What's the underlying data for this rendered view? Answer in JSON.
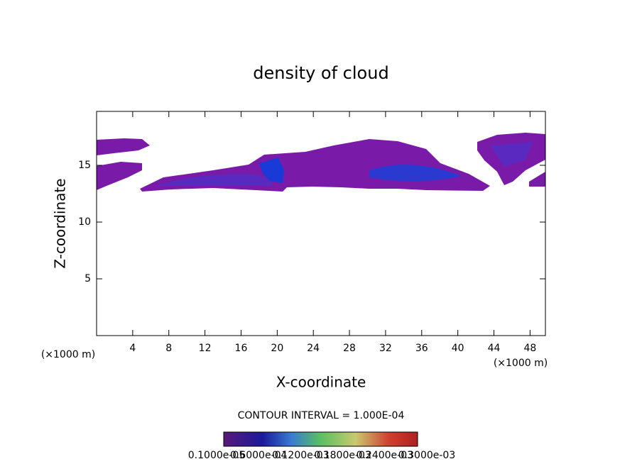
{
  "chart_data": {
    "type": "contour",
    "title": "density of cloud",
    "x_label": "X-coordinate",
    "y_label": "Z-coordinate",
    "x_unit": "(×1000 m)",
    "y_unit": "(×1000 m)",
    "xlim": [
      0,
      49.7
    ],
    "ylim": [
      0,
      19.75
    ],
    "xticks": [
      4,
      8,
      12,
      16,
      20,
      24,
      28,
      32,
      36,
      40,
      44,
      48
    ],
    "yticks": [
      5,
      10,
      15
    ],
    "contour_interval": "CONTOUR INTERVAL = 1.000E-04",
    "colorbar_labels": [
      "0.1000e-05",
      "0.6000e-04",
      "0.1200e-03",
      "0.1800e-03",
      "0.2400e-03",
      "0.3000e-03"
    ]
  }
}
